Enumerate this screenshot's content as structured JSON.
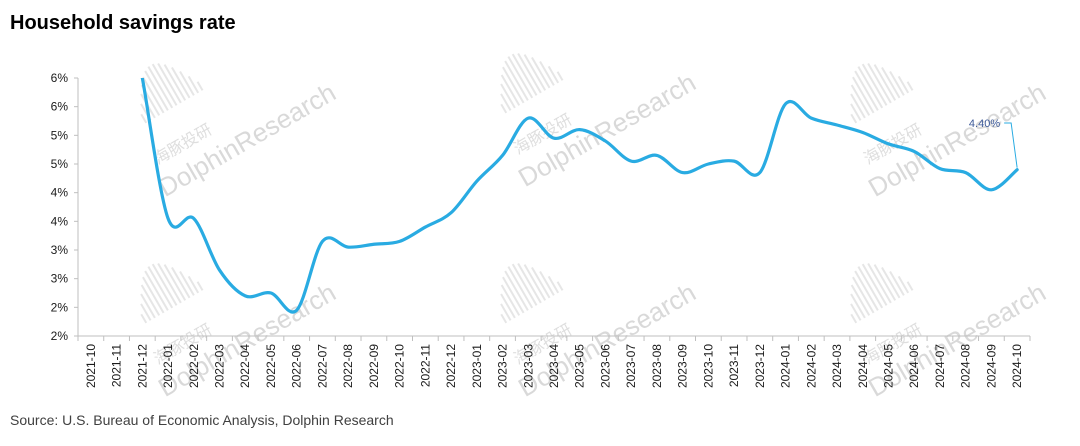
{
  "title": "Household savings rate",
  "source": "Source: U.S. Bureau of Economic Analysis, Dolphin Research",
  "watermark": {
    "cn": "海豚投研",
    "en": "DolphinResearch"
  },
  "colors": {
    "line": "#29abe2",
    "callout": "#3d5a99",
    "axis": "#bfbfbf"
  },
  "chart_data": {
    "type": "line",
    "title": "Household savings rate",
    "xlabel": "",
    "ylabel": "",
    "ylim": [
      1.5,
      6.0
    ],
    "yticks": [
      1.5,
      2.0,
      2.5,
      3.0,
      3.5,
      4.0,
      4.5,
      5.0,
      5.5,
      6.0
    ],
    "ytick_labels": [
      "2%",
      "2%",
      "3%",
      "3%",
      "4%",
      "4%",
      "5%",
      "5%",
      "6%",
      "6%"
    ],
    "x": [
      "2021-10",
      "2021-11",
      "2021-12",
      "2022-01",
      "2022-02",
      "2022-03",
      "2022-04",
      "2022-05",
      "2022-06",
      "2022-07",
      "2022-08",
      "2022-09",
      "2022-10",
      "2022-11",
      "2022-12",
      "2023-01",
      "2023-02",
      "2023-03",
      "2023-04",
      "2023-05",
      "2023-06",
      "2023-07",
      "2023-08",
      "2023-09",
      "2023-10",
      "2023-11",
      "2023-12",
      "2024-01",
      "2024-02",
      "2024-03",
      "2024-04",
      "2024-05",
      "2024-06",
      "2024-07",
      "2024-08",
      "2024-09",
      "2024-10"
    ],
    "series": [
      {
        "values": [
          null,
          null,
          6.0,
          3.55,
          3.55,
          2.65,
          2.2,
          2.25,
          1.95,
          3.15,
          3.05,
          3.1,
          3.15,
          3.4,
          3.65,
          4.2,
          4.65,
          5.3,
          4.95,
          5.1,
          4.9,
          4.55,
          4.65,
          4.35,
          4.5,
          4.55,
          4.35,
          5.55,
          5.3,
          5.18,
          5.05,
          4.85,
          4.72,
          4.42,
          4.35,
          4.05,
          4.4
        ],
        "clipped_at_top": true
      }
    ],
    "annotations": [
      {
        "x": "2024-10",
        "text": "4.40%"
      }
    ],
    "grid": false,
    "legend": "none"
  }
}
